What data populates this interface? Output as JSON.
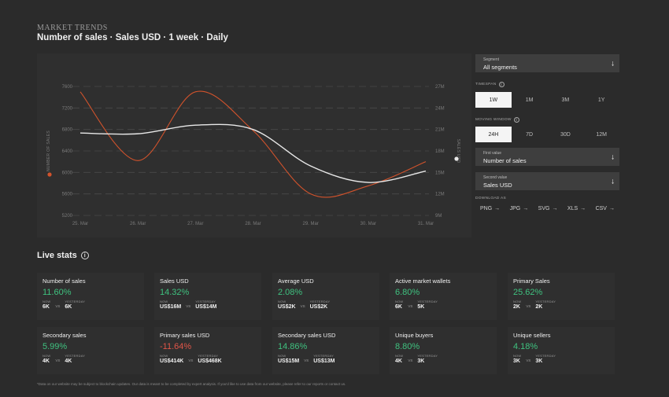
{
  "header": {
    "kicker": "MARKET TRENDS",
    "title": "Number of sales · Sales USD · 1 week · Daily"
  },
  "chart_data": {
    "type": "line",
    "x": [
      "25. Mar",
      "26. Mar",
      "27. Mar",
      "28. Mar",
      "29. Mar",
      "30. Mar",
      "31. Mar"
    ],
    "y_left": {
      "label": "NUMBER OF SALES",
      "ticks": [
        "7600",
        "7200",
        "6800",
        "6400",
        "6000",
        "5600",
        "5200"
      ],
      "range": [
        5200,
        7600
      ]
    },
    "y_right": {
      "label": "SALES USD",
      "ticks": [
        "27M",
        "24M",
        "21M",
        "18M",
        "15M",
        "12M",
        "9M"
      ],
      "range": [
        9,
        27
      ]
    },
    "series": [
      {
        "name": "Number of sales",
        "axis": "left",
        "color": "#d2532c",
        "values": [
          7500,
          6220,
          7500,
          6780,
          5600,
          5750,
          6200
        ]
      },
      {
        "name": "Sales USD",
        "axis": "right",
        "color": "#e8e8e8",
        "values": [
          20.5,
          20.4,
          21.6,
          21.0,
          15.9,
          13.6,
          15.2
        ]
      }
    ],
    "grid": true
  },
  "controls": {
    "segment": {
      "label": "Segment",
      "value": "All segments"
    },
    "timespan": {
      "label": "TIMESPAN",
      "options": [
        "1W",
        "1M",
        "3M",
        "1Y"
      ],
      "active": "1W"
    },
    "moving_window": {
      "label": "MOVING WINDOW",
      "options": [
        "24H",
        "7D",
        "30D",
        "12M"
      ],
      "active": "24H"
    },
    "first_value": {
      "label": "First value",
      "value": "Number of sales"
    },
    "second_value": {
      "label": "Second value",
      "value": "Sales USD"
    },
    "download": {
      "label": "DOWNLOAD AS",
      "formats": [
        "PNG",
        "JPG",
        "SVG",
        "XLS",
        "CSV"
      ]
    }
  },
  "live": {
    "title": "Live stats",
    "now_label": "NOW",
    "vs_label": "VS",
    "yesterday_label": "YESTERDAY",
    "cards": [
      {
        "name": "Number of sales",
        "pct": "11.60%",
        "trend": "up",
        "now": "6K",
        "yesterday": "6K"
      },
      {
        "name": "Sales USD",
        "pct": "14.32%",
        "trend": "up",
        "now": "US$16M",
        "yesterday": "US$14M"
      },
      {
        "name": "Average USD",
        "pct": "2.08%",
        "trend": "up",
        "now": "US$2K",
        "yesterday": "US$2K"
      },
      {
        "name": "Active market wallets",
        "pct": "6.80%",
        "trend": "up",
        "now": "6K",
        "yesterday": "5K"
      },
      {
        "name": "Primary Sales",
        "pct": "25.62%",
        "trend": "up",
        "now": "2K",
        "yesterday": "2K"
      },
      {
        "name": "Secondary sales",
        "pct": "5.99%",
        "trend": "up",
        "now": "4K",
        "yesterday": "4K"
      },
      {
        "name": "Primary sales USD",
        "pct": "-11.64%",
        "trend": "down",
        "now": "US$414K",
        "yesterday": "US$468K"
      },
      {
        "name": "Secondary sales USD",
        "pct": "14.86%",
        "trend": "up",
        "now": "US$15M",
        "yesterday": "US$13M"
      },
      {
        "name": "Unique buyers",
        "pct": "8.80%",
        "trend": "up",
        "now": "4K",
        "yesterday": "3K"
      },
      {
        "name": "Unique sellers",
        "pct": "4.18%",
        "trend": "up",
        "now": "3K",
        "yesterday": "3K"
      }
    ]
  },
  "footer": {
    "note": "*Data on our website may be subject to blockchain updates. Our data is meant to be completed by expert analysis. If you'd like to use data from our website, please refer to our reports or contact us."
  },
  "colors": {
    "background": "#2b2b2b",
    "panel": "#2f2f2f",
    "up": "#3fc17f",
    "down": "#e15548",
    "accent": "#d2532c"
  }
}
